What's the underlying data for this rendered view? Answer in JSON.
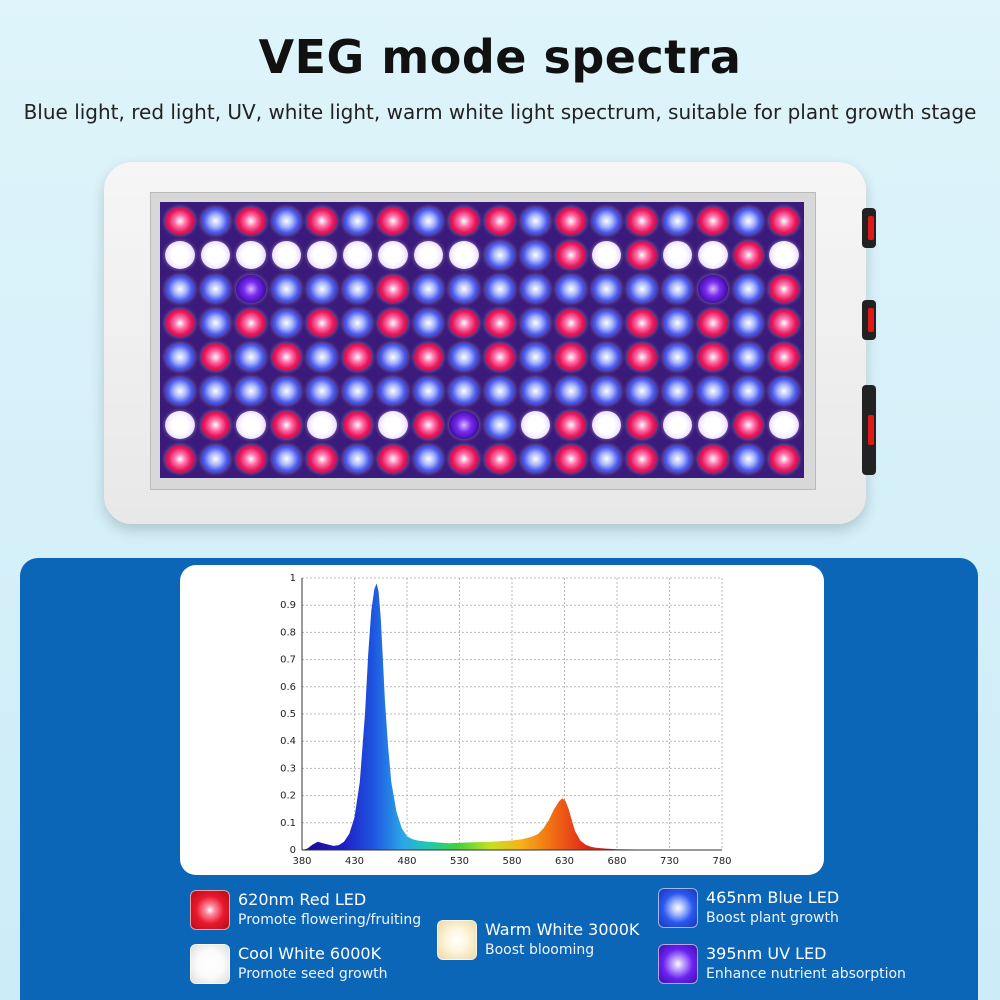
{
  "header": {
    "title": "VEG mode spectra",
    "subtitle": "Blue light, red light, UV, white light, warm white light spectrum, suitable for plant growth stage"
  },
  "fixture": {
    "led_rows": [
      "rbrbrbrbrrbrbrbrbr",
      "wwwwwwwwwbbrwrwwrw",
      "bbubbbrbbbbbbbbubr",
      "rbrbrbrbrrbrbrbrbr",
      "brbrbrbrbrbrbrbrbr",
      "bbbbbbbbbbbbbbbbbb",
      "wrwrwrwrubwrwrwwrw",
      "rbrbrbrbrrbrbrbrbr"
    ],
    "colors": {
      "red": "#e8185c",
      "blue": "#4b58e8",
      "white": "#ffffff",
      "uv": "#7a2cf0"
    }
  },
  "chart_data": {
    "type": "area",
    "title": "",
    "xlabel": "",
    "ylabel": "",
    "xlim": [
      380,
      780
    ],
    "ylim": [
      0,
      1
    ],
    "x_ticks": [
      380,
      430,
      480,
      530,
      580,
      630,
      680,
      730,
      780
    ],
    "y_ticks": [
      0,
      0.1,
      0.2,
      0.3,
      0.4,
      0.5,
      0.6,
      0.7,
      0.8,
      0.9,
      1
    ],
    "y_tick_labels": [
      "0",
      "0.1",
      "0.2",
      "0.3",
      "0.4",
      "0.5",
      "0.6",
      "0.7",
      "0.8",
      "0.9",
      "1"
    ],
    "grid": true,
    "fill": "visible-spectrum gradient",
    "series": [
      {
        "x": [
          380,
          385,
          390,
          395,
          400,
          405,
          410,
          415,
          420,
          425,
          430,
          435,
          440,
          443,
          446,
          449,
          451,
          453,
          455,
          457,
          459,
          462,
          465,
          470,
          475,
          480,
          485,
          490,
          500,
          520,
          540,
          560,
          580,
          590,
          600,
          605,
          610,
          615,
          620,
          625,
          628,
          631,
          634,
          637,
          640,
          645,
          650,
          655,
          660,
          670,
          680,
          700,
          720,
          740,
          760,
          780
        ],
        "y": [
          0.0,
          0.005,
          0.02,
          0.03,
          0.025,
          0.02,
          0.015,
          0.018,
          0.03,
          0.06,
          0.12,
          0.25,
          0.5,
          0.72,
          0.88,
          0.96,
          0.98,
          0.95,
          0.85,
          0.7,
          0.55,
          0.38,
          0.25,
          0.14,
          0.08,
          0.05,
          0.04,
          0.035,
          0.03,
          0.025,
          0.028,
          0.03,
          0.035,
          0.04,
          0.05,
          0.06,
          0.08,
          0.11,
          0.15,
          0.18,
          0.19,
          0.18,
          0.15,
          0.11,
          0.07,
          0.035,
          0.02,
          0.012,
          0.008,
          0.005,
          0.003,
          0.002,
          0.001,
          0.0,
          0.0,
          0.0
        ]
      }
    ]
  },
  "legend": [
    {
      "name": "620nm Red LED",
      "desc": "Promote flowering/fruiting",
      "color": "#e8182c"
    },
    {
      "name": "Cool White 6000K",
      "desc": "Promote seed growth",
      "color": "#f5f5f5"
    },
    {
      "name": "Warm White 3000K",
      "desc": "Boost blooming",
      "color": "#f3e3b8"
    },
    {
      "name": "465nm Blue LED",
      "desc": "Boost plant growth",
      "color": "#2c58f0"
    },
    {
      "name": "395nm UV LED",
      "desc": "Enhance nutrient absorption",
      "color": "#6a22f0"
    }
  ],
  "colors": {
    "panel_blue": "#0b66b8",
    "background": "#dff4fb"
  }
}
